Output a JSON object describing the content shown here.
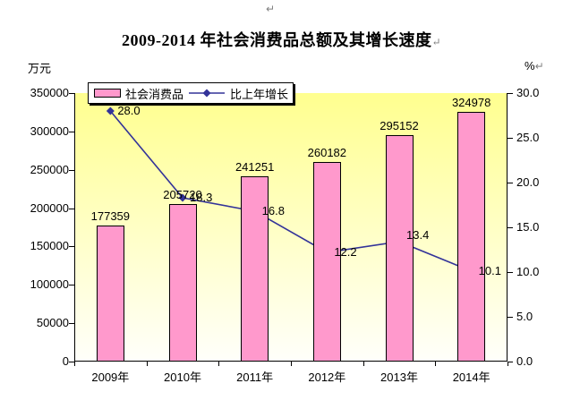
{
  "page": {
    "paragraph_mark": "↵"
  },
  "title": "2009-2014 年社会消费品总额及其增长速度",
  "axes": {
    "left_unit": "万元",
    "right_unit": "%",
    "left_ticks": [
      "0",
      "50000",
      "100000",
      "150000",
      "200000",
      "250000",
      "300000",
      "350000"
    ],
    "right_ticks": [
      "0.0",
      "5.0",
      "10.0",
      "15.0",
      "20.0",
      "25.0",
      "30.0"
    ],
    "categories": [
      "2009年",
      "2010年",
      "2011年",
      "2012年",
      "2013年",
      "2014年"
    ]
  },
  "legend": {
    "bar_label": "社会消费品",
    "line_label": "比上年增长"
  },
  "colors": {
    "bar_fill": "#FF99CC",
    "bar_border": "#000000",
    "line": "#333399",
    "plot_bg_top": "#FFFF8F",
    "plot_bg_bottom": "#FFFFFA"
  },
  "chart_data": {
    "type": "bar",
    "subtype": "bar+line-combo",
    "title": "2009-2014 年社会消费品总额及其增长速度",
    "categories": [
      "2009年",
      "2010年",
      "2011年",
      "2012年",
      "2013年",
      "2014年"
    ],
    "series": [
      {
        "name": "社会消费品",
        "type": "bar",
        "axis": "left",
        "unit": "万元",
        "values": [
          177359,
          205720,
          241251,
          260182,
          295152,
          324978
        ],
        "labels": [
          "177359",
          "205720",
          "241251",
          "260182",
          "295152",
          "324978"
        ]
      },
      {
        "name": "比上年增长",
        "type": "line",
        "axis": "right",
        "unit": "%",
        "values": [
          28.0,
          18.3,
          16.8,
          12.2,
          13.4,
          10.1
        ],
        "labels": [
          "28.0",
          "18.3",
          "16.8",
          "12.2",
          "13.4",
          "10.1"
        ]
      }
    ],
    "left_axis": {
      "label": "万元",
      "min": 0,
      "max": 350000,
      "step": 50000
    },
    "right_axis": {
      "label": "%",
      "min": 0,
      "max": 30,
      "step": 5
    },
    "legend_position": "top",
    "grid": false,
    "plot_background": "yellow-to-white vertical gradient"
  }
}
